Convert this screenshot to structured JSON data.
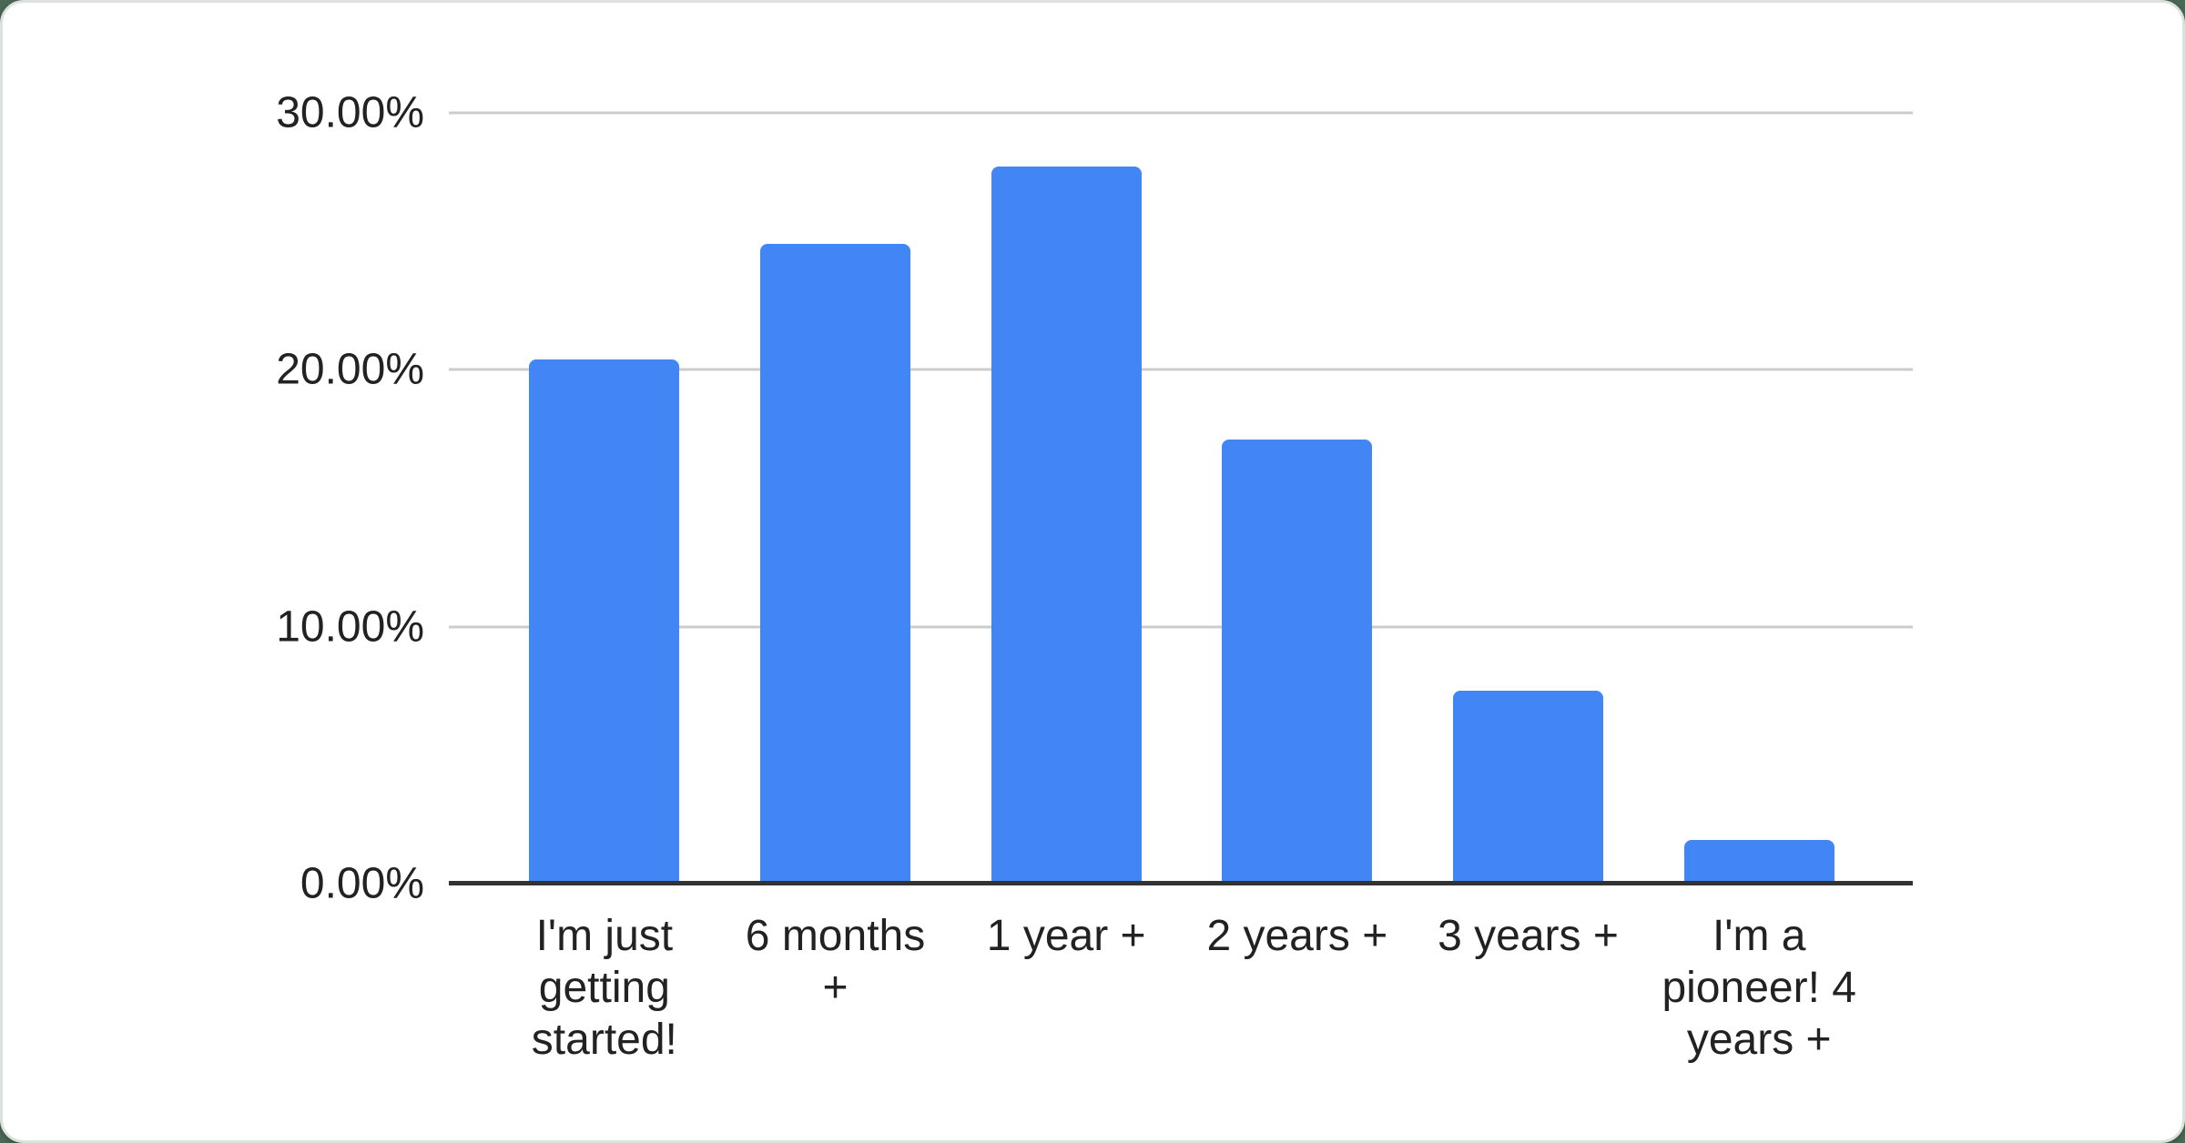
{
  "chart_data": {
    "type": "bar",
    "title": "",
    "xlabel": "",
    "ylabel": "",
    "categories": [
      "I'm just getting started!",
      "6 months +",
      "1 year +",
      "2 years +",
      "3 years +",
      "I'm a pioneer! 4 years +"
    ],
    "values": [
      20.4,
      24.9,
      27.9,
      17.3,
      7.5,
      1.7
    ],
    "ylim": [
      0,
      30
    ],
    "ytick_values": [
      0,
      10,
      20,
      30
    ],
    "ytick_labels": [
      "0.00%",
      "10.00%",
      "20.00%",
      "30.00%"
    ],
    "grid": true,
    "legend_position": "none",
    "bar_color": "#4285f4",
    "gridline_color": "#cccccc",
    "axis_color": "#333333",
    "label_color": "#222222",
    "card_background": "#ffffff",
    "page_background": "#4a6853"
  }
}
